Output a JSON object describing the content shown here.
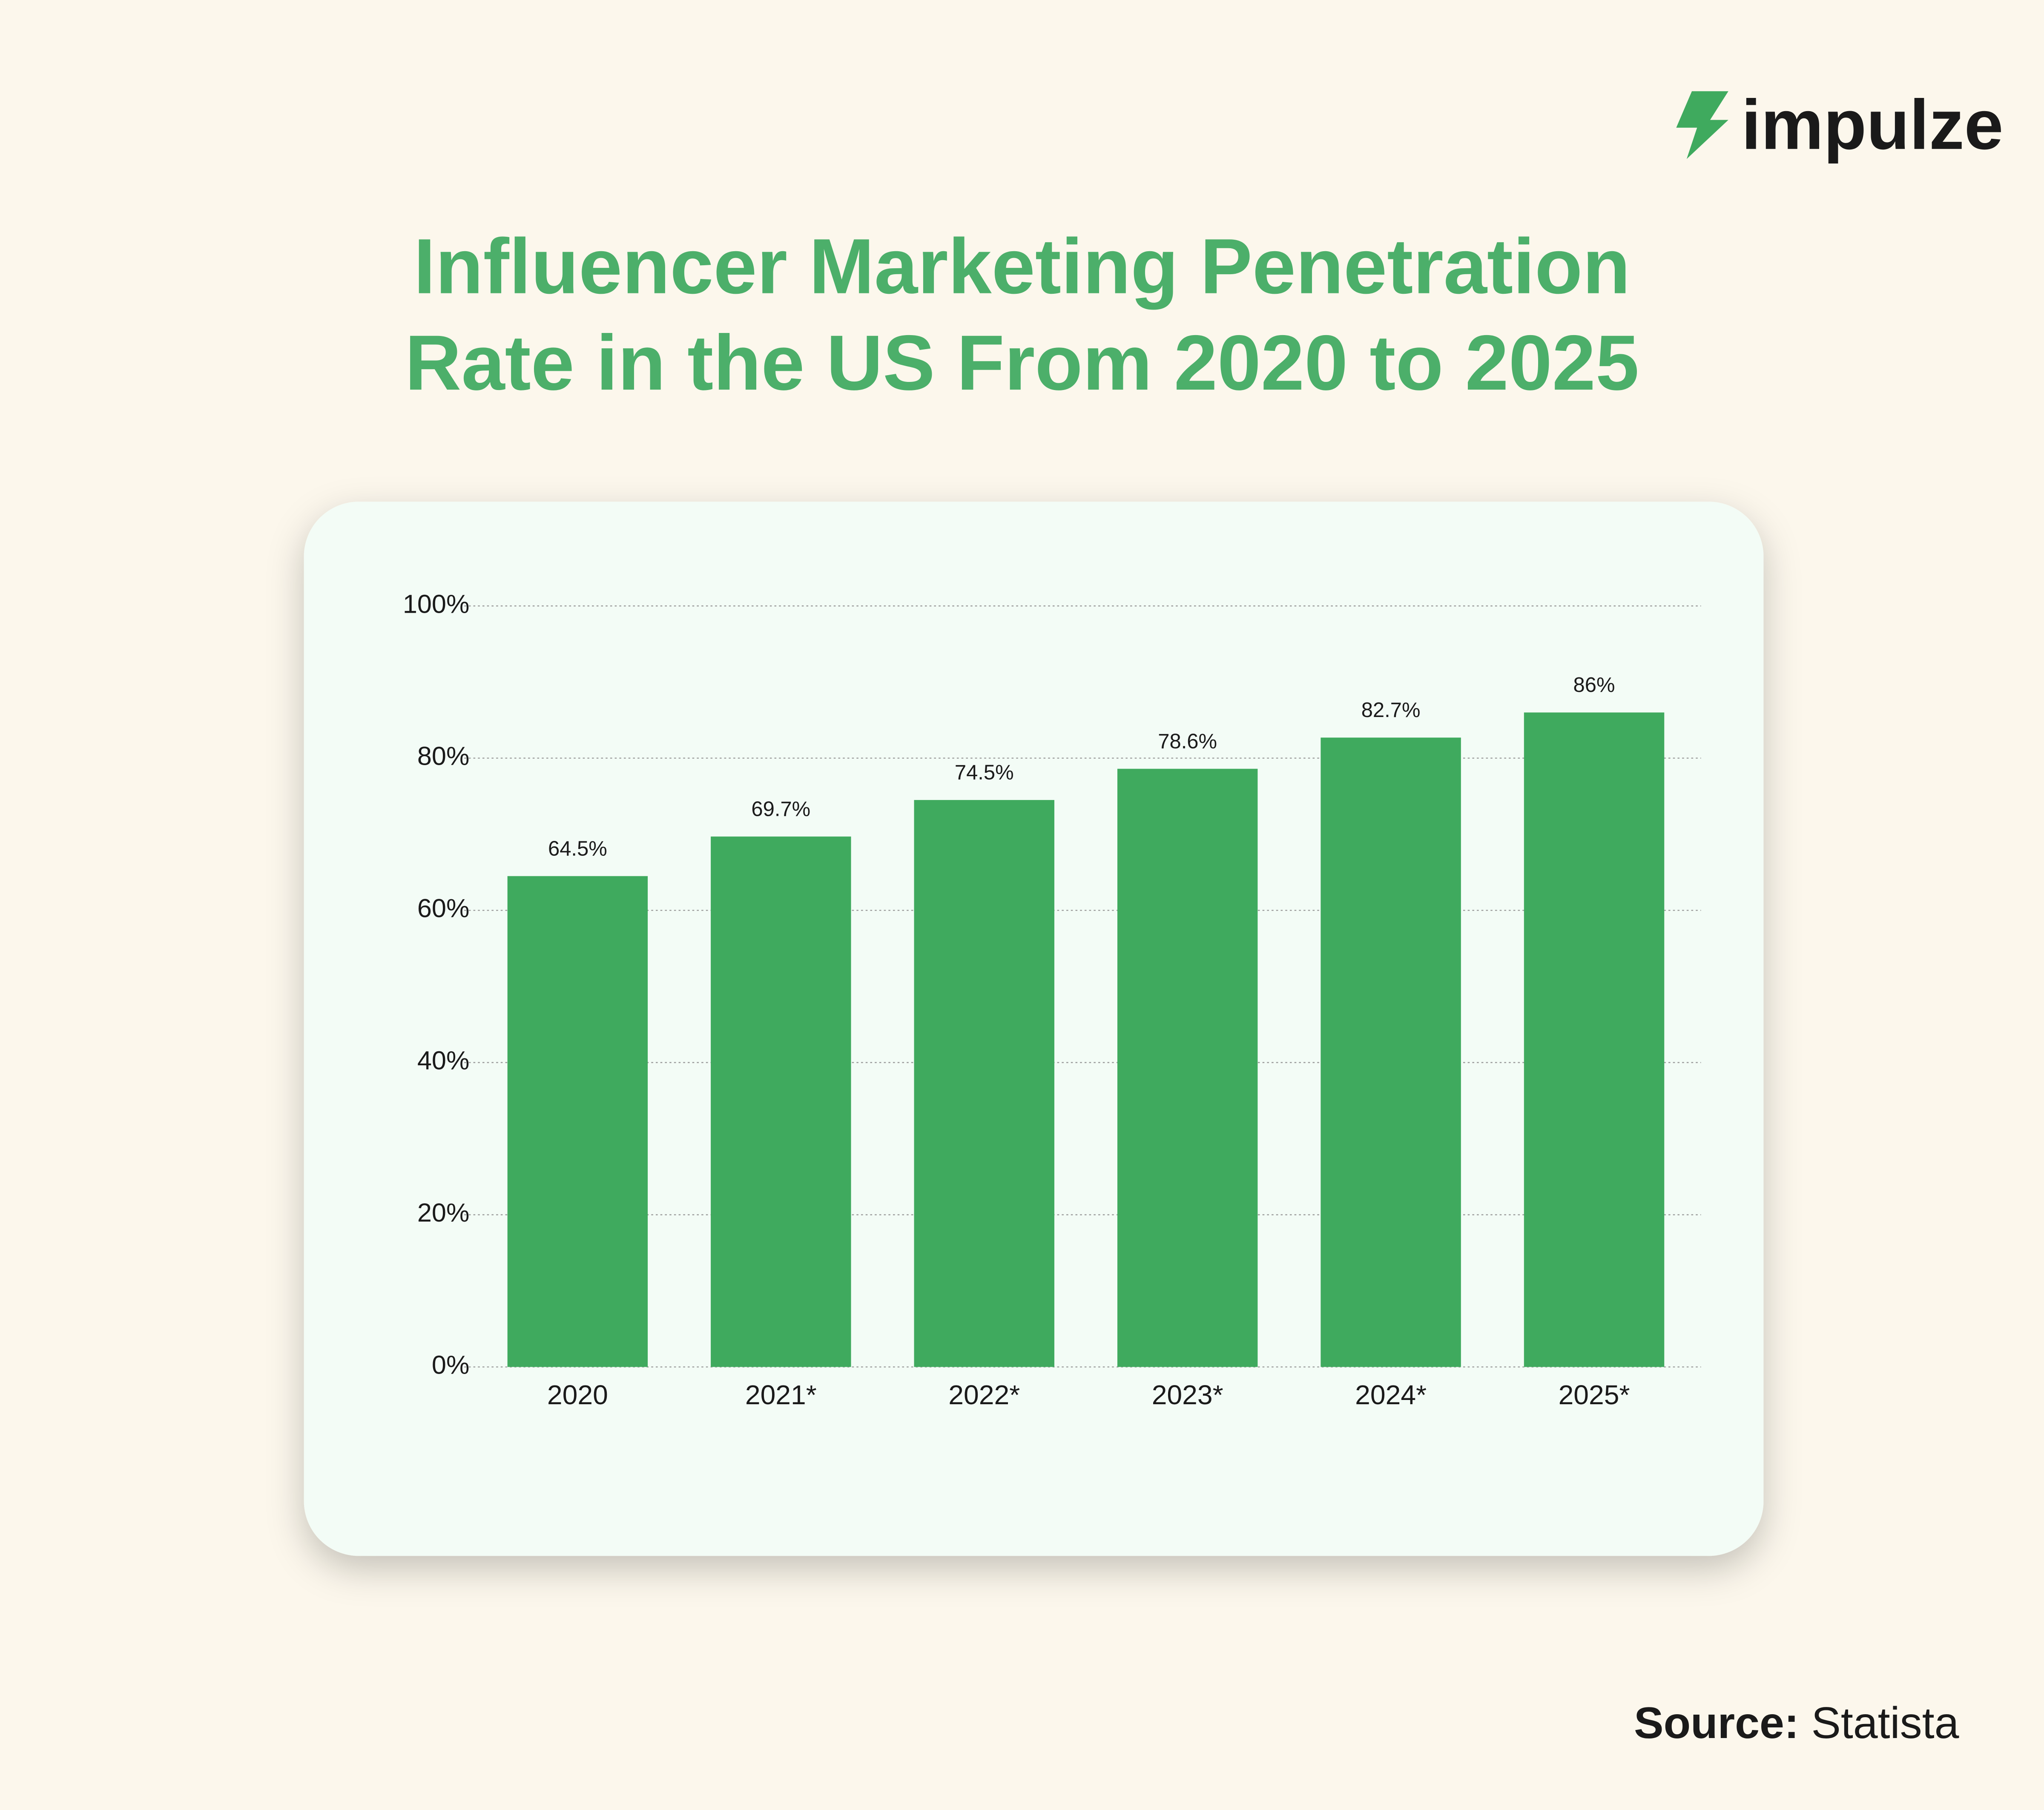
{
  "logo": "impulze",
  "chart_data": {
    "type": "bar",
    "title": "Influencer Marketing Penetration Rate in the US From 2020 to 2025",
    "categories": [
      "2020",
      "2021*",
      "2022*",
      "2023*",
      "2024*",
      "2025*"
    ],
    "values": [
      64.5,
      69.7,
      74.5,
      78.6,
      82.7,
      86
    ],
    "value_labels": [
      "64.5%",
      "69.7%",
      "74.5%",
      "78.6%",
      "82.7%",
      "86%"
    ],
    "color": "#3faa5e",
    "ylim": [
      0,
      100
    ],
    "yticks": [
      {
        "value": 0,
        "label": "0%"
      },
      {
        "value": 20,
        "label": "20%"
      },
      {
        "value": 40,
        "label": "40%"
      },
      {
        "value": 60,
        "label": "60%"
      },
      {
        "value": 80,
        "label": "80%"
      },
      {
        "value": 100,
        "label": "100%"
      }
    ],
    "grid": true
  },
  "source_label": "Source:",
  "source": "Statista"
}
